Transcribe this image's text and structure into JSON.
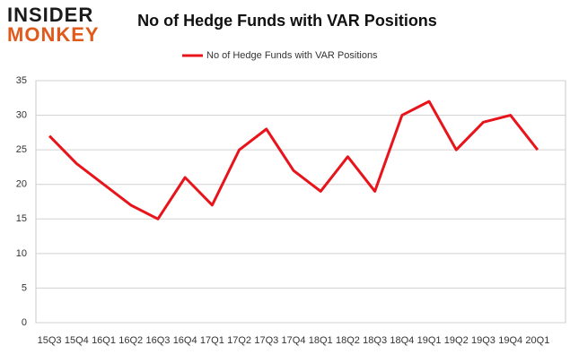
{
  "logo": {
    "top": "INSIDER",
    "bottom": "MONKEY"
  },
  "chart_data": {
    "type": "line",
    "title": "No of Hedge Funds with VAR Positions",
    "categories": [
      "15Q3",
      "15Q4",
      "16Q1",
      "16Q2",
      "16Q3",
      "16Q4",
      "17Q1",
      "17Q2",
      "17Q3",
      "17Q4",
      "18Q1",
      "18Q2",
      "18Q3",
      "18Q4",
      "19Q1",
      "19Q2",
      "19Q3",
      "19Q4",
      "20Q1"
    ],
    "series": [
      {
        "name": "No of Hedge Funds with VAR Positions",
        "color": "#e8141b",
        "values": [
          27,
          23,
          20,
          17,
          15,
          21,
          17,
          25,
          28,
          22,
          19,
          24,
          19,
          30,
          32,
          25,
          29,
          30,
          25
        ]
      }
    ],
    "ylim": [
      0,
      35
    ],
    "yticks": [
      0,
      5,
      10,
      15,
      20,
      25,
      30,
      35
    ],
    "grid": true,
    "legend": "top"
  }
}
